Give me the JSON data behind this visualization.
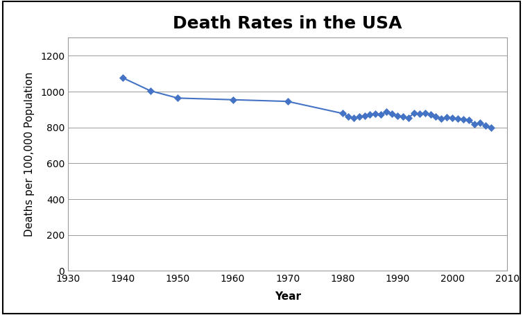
{
  "title": "Death Rates in the USA",
  "xlabel": "Year",
  "ylabel": "Deaths per 100,000 Population",
  "years": [
    1940,
    1945,
    1950,
    1960,
    1970,
    1980,
    1981,
    1982,
    1983,
    1984,
    1985,
    1986,
    1987,
    1988,
    1989,
    1990,
    1991,
    1992,
    1993,
    1994,
    1995,
    1996,
    1997,
    1998,
    1999,
    2000,
    2001,
    2002,
    2003,
    2004,
    2005,
    2006,
    2007
  ],
  "rates": [
    1076.4,
    1004.5,
    963.8,
    954.7,
    945.3,
    878.3,
    862.0,
    852.4,
    859.9,
    864.8,
    873.9,
    876.7,
    872.4,
    886.7,
    874.4,
    863.8,
    860.3,
    853.3,
    880.0,
    875.4,
    880.0,
    872.5,
    860.9,
    847.6,
    857.0,
    854.0,
    848.5,
    845.3,
    841.9,
    816.5,
    825.9,
    810.0,
    799.5
  ],
  "line_color": "#4472c4",
  "marker_color": "#4472c4",
  "marker": "D",
  "marker_size": 5,
  "line_width": 1.5,
  "xlim": [
    1930,
    2010
  ],
  "ylim": [
    0,
    1300
  ],
  "yticks": [
    0,
    200,
    400,
    600,
    800,
    1000,
    1200
  ],
  "xticks": [
    1930,
    1940,
    1950,
    1960,
    1970,
    1980,
    1990,
    2000,
    2010
  ],
  "title_fontsize": 18,
  "label_fontsize": 11,
  "tick_fontsize": 10,
  "background_color": "#ffffff",
  "grid_color": "#999999",
  "grid_linewidth": 0.7,
  "border_color": "#000000",
  "border_linewidth": 1.5
}
